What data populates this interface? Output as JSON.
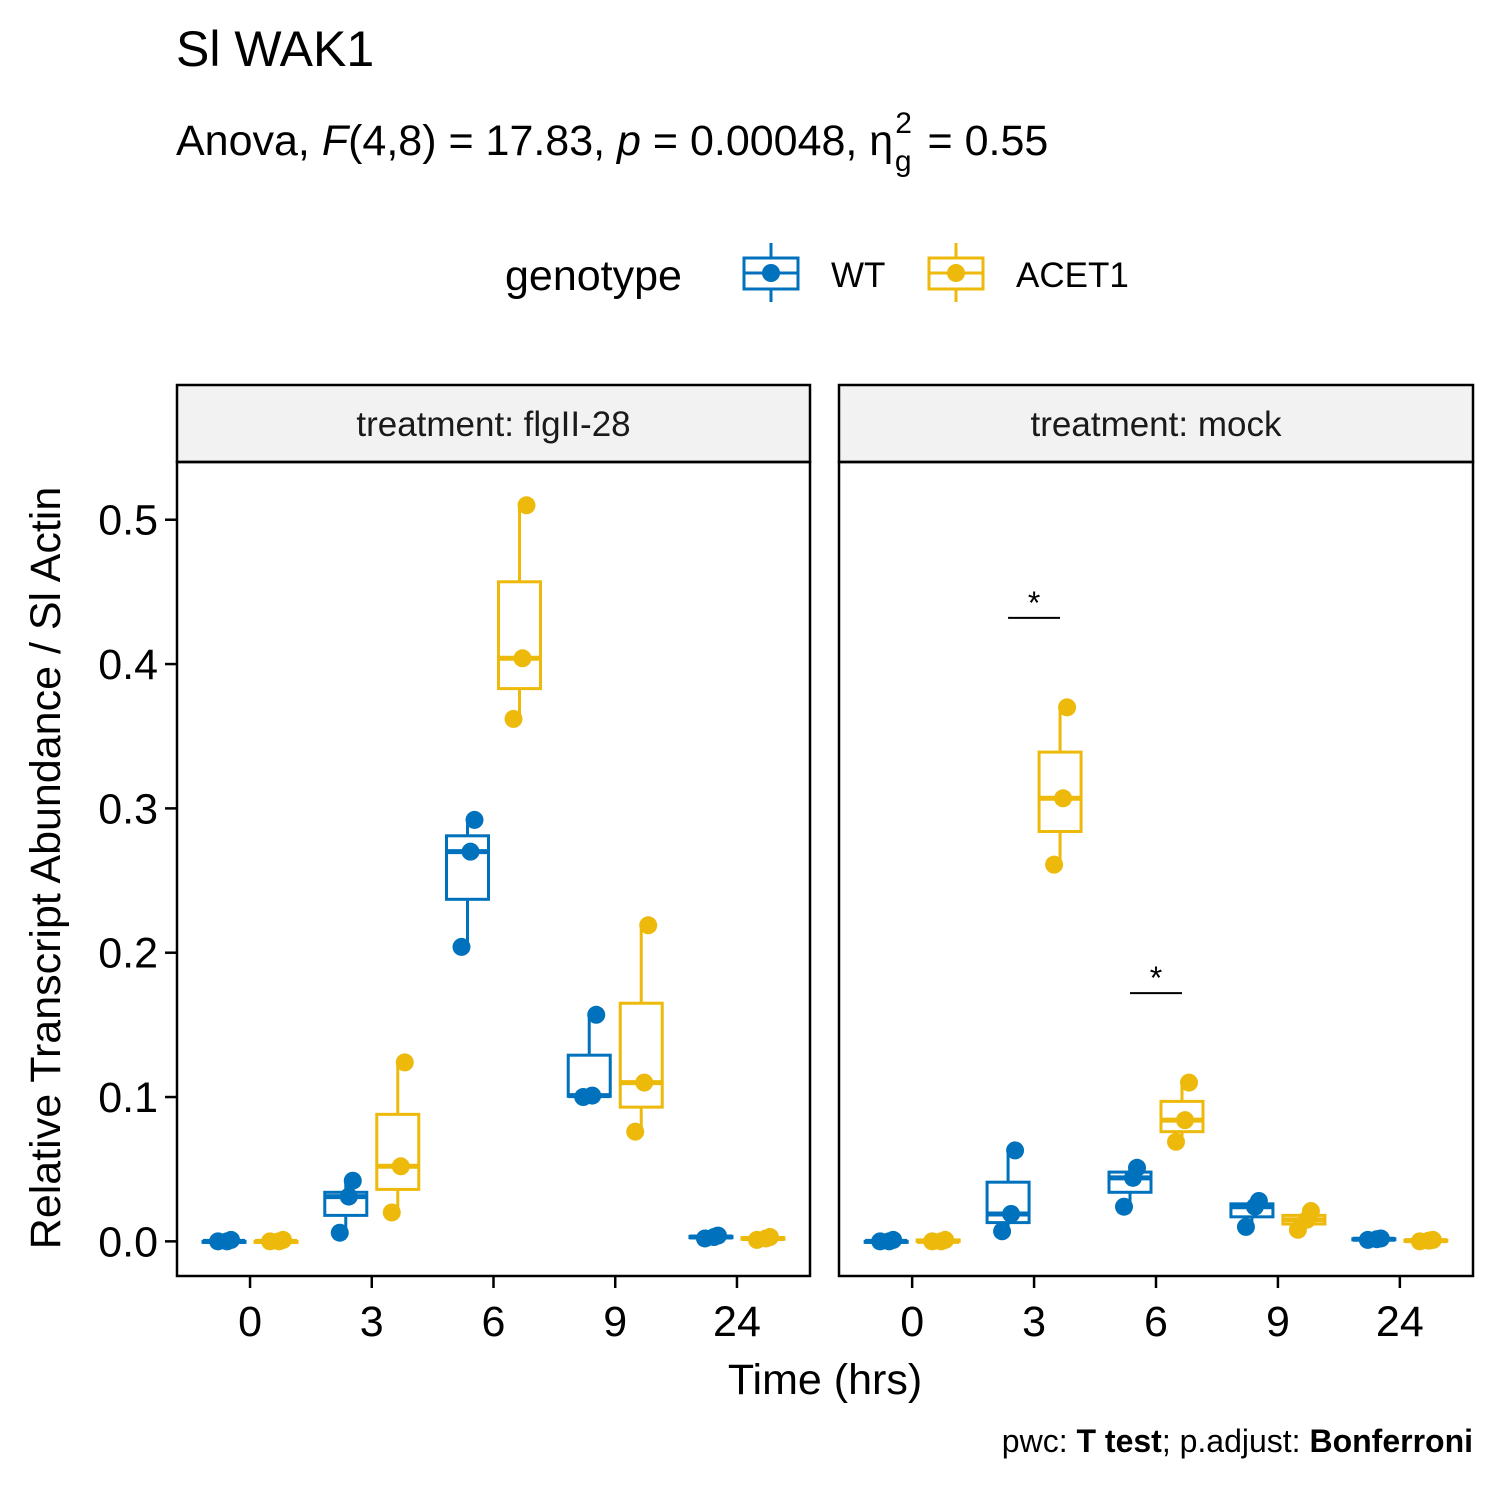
{
  "title": "Sl WAK1",
  "subtitle": {
    "p1": "Anova, ",
    "F": "F",
    "p2": "(4,8) = 17.83, ",
    "p": "p",
    "p3": " = 0.00048, η",
    "sup": "2",
    "sub": "g",
    "p4": " = 0.55"
  },
  "caption": {
    "a": "pwc: ",
    "b": "T test",
    "c": "; p.adjust: ",
    "d": "Bonferroni"
  },
  "chart_data": {
    "type": "box",
    "xlabel": "Time (hrs)",
    "ylabel": "Relative Transcript Abundance / Sl Actin",
    "ylim": [
      -0.024,
      0.54
    ],
    "yticks": [
      "0.0",
      "0.1",
      "0.2",
      "0.3",
      "0.4",
      "0.5"
    ],
    "categories": [
      "0",
      "3",
      "6",
      "9",
      "24"
    ],
    "legend": {
      "title": "genotype",
      "position": "top"
    },
    "series": [
      {
        "name": "WT",
        "color": "#0072BD"
      },
      {
        "name": "ACET1",
        "color": "#EDB90A"
      }
    ],
    "panels": [
      {
        "strip": "treatment: flgII-28",
        "groups": {
          "WT": [
            {
              "x": "0",
              "min": 0.0,
              "q1": 0.0,
              "median": 0.0,
              "q3": 0.0,
              "max": 0.001,
              "points": [
                0.0,
                0.0,
                0.001
              ]
            },
            {
              "x": "3",
              "min": 0.006,
              "q1": 0.018,
              "median": 0.031,
              "q3": 0.034,
              "max": 0.042,
              "points": [
                0.006,
                0.031,
                0.042
              ]
            },
            {
              "x": "6",
              "min": 0.204,
              "q1": 0.237,
              "median": 0.27,
              "q3": 0.281,
              "max": 0.292,
              "points": [
                0.204,
                0.27,
                0.292
              ]
            },
            {
              "x": "9",
              "min": 0.1,
              "q1": 0.1005,
              "median": 0.101,
              "q3": 0.129,
              "max": 0.157,
              "points": [
                0.1,
                0.101,
                0.157
              ]
            },
            {
              "x": "24",
              "min": 0.002,
              "q1": 0.0025,
              "median": 0.003,
              "q3": 0.0035,
              "max": 0.004,
              "points": [
                0.002,
                0.003,
                0.004
              ]
            }
          ],
          "ACET1": [
            {
              "x": "0",
              "min": 0.0,
              "q1": 0.0,
              "median": 0.0,
              "q3": 0.0,
              "max": 0.001,
              "points": [
                0.0,
                0.0,
                0.001
              ]
            },
            {
              "x": "3",
              "min": 0.02,
              "q1": 0.036,
              "median": 0.052,
              "q3": 0.088,
              "max": 0.124,
              "points": [
                0.02,
                0.052,
                0.124
              ]
            },
            {
              "x": "6",
              "min": 0.362,
              "q1": 0.383,
              "median": 0.404,
              "q3": 0.457,
              "max": 0.51,
              "points": [
                0.362,
                0.404,
                0.51
              ]
            },
            {
              "x": "9",
              "min": 0.076,
              "q1": 0.093,
              "median": 0.11,
              "q3": 0.165,
              "max": 0.219,
              "points": [
                0.076,
                0.11,
                0.219
              ]
            },
            {
              "x": "24",
              "min": 0.001,
              "q1": 0.0015,
              "median": 0.002,
              "q3": 0.0025,
              "max": 0.003,
              "points": [
                0.001,
                0.002,
                0.003
              ]
            }
          ]
        },
        "annotations": []
      },
      {
        "strip": "treatment: mock",
        "groups": {
          "WT": [
            {
              "x": "0",
              "min": 0.0,
              "q1": 0.0,
              "median": 0.0,
              "q3": 0.0,
              "max": 0.001,
              "points": [
                0.0,
                0.0,
                0.001
              ]
            },
            {
              "x": "3",
              "min": 0.007,
              "q1": 0.013,
              "median": 0.019,
              "q3": 0.041,
              "max": 0.063,
              "points": [
                0.007,
                0.019,
                0.063
              ]
            },
            {
              "x": "6",
              "min": 0.024,
              "q1": 0.034,
              "median": 0.044,
              "q3": 0.048,
              "max": 0.051,
              "points": [
                0.024,
                0.044,
                0.051
              ]
            },
            {
              "x": "9",
              "min": 0.01,
              "q1": 0.017,
              "median": 0.024,
              "q3": 0.026,
              "max": 0.028,
              "points": [
                0.01,
                0.024,
                0.028
              ]
            },
            {
              "x": "24",
              "min": 0.001,
              "q1": 0.0012,
              "median": 0.0015,
              "q3": 0.0018,
              "max": 0.002,
              "points": [
                0.001,
                0.0015,
                0.002
              ]
            }
          ],
          "ACET1": [
            {
              "x": "0",
              "min": 0.0,
              "q1": 0.0,
              "median": 0.0,
              "q3": 0.001,
              "max": 0.001,
              "points": [
                0.0,
                0.0,
                0.001
              ]
            },
            {
              "x": "3",
              "min": 0.261,
              "q1": 0.284,
              "median": 0.307,
              "q3": 0.339,
              "max": 0.37,
              "points": [
                0.261,
                0.307,
                0.37
              ]
            },
            {
              "x": "6",
              "min": 0.069,
              "q1": 0.076,
              "median": 0.084,
              "q3": 0.097,
              "max": 0.11,
              "points": [
                0.069,
                0.084,
                0.11
              ]
            },
            {
              "x": "9",
              "min": 0.008,
              "q1": 0.012,
              "median": 0.015,
              "q3": 0.018,
              "max": 0.021,
              "points": [
                0.008,
                0.015,
                0.021
              ]
            },
            {
              "x": "24",
              "min": 0.0,
              "q1": 0.0002,
              "median": 0.0005,
              "q3": 0.0008,
              "max": 0.001,
              "points": [
                0.0,
                0.0005,
                0.001
              ]
            }
          ]
        },
        "annotations": [
          {
            "x": "3",
            "label": "*",
            "y": 0.432
          },
          {
            "x": "6",
            "label": "*",
            "y": 0.172
          }
        ]
      }
    ]
  }
}
